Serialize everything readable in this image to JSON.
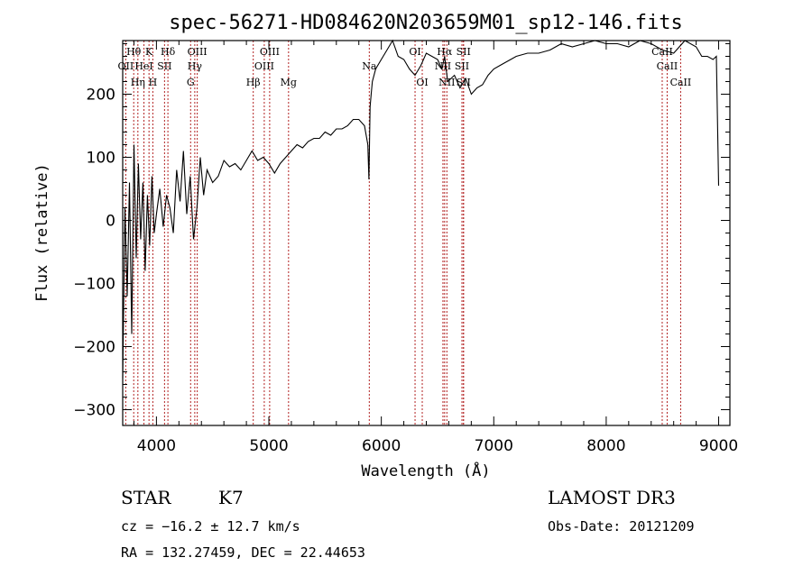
{
  "chart_data": {
    "type": "line",
    "title": "spec-56271-HD084620N203659M01_sp12-146.fits",
    "xlabel": "Wavelength (Å)",
    "ylabel": "Flux (relative)",
    "xlim": [
      3700,
      9100
    ],
    "ylim": [
      -325,
      285
    ],
    "xticks": [
      4000,
      5000,
      6000,
      7000,
      8000,
      9000
    ],
    "yticks": [
      -300,
      -200,
      -100,
      0,
      100,
      200
    ],
    "grid": false,
    "line_color": "#000000",
    "marker_color": "#b22222",
    "spectral_lines": [
      {
        "label": "OII",
        "wavelength": 3727,
        "row": 2
      },
      {
        "label": "Hθ",
        "wavelength": 3798,
        "row": 1
      },
      {
        "label": "Hη",
        "wavelength": 3835,
        "row": 3
      },
      {
        "label": "HeI",
        "wavelength": 3889,
        "row": 2
      },
      {
        "label": "K",
        "wavelength": 3934,
        "row": 1
      },
      {
        "label": "H",
        "wavelength": 3968,
        "row": 3
      },
      {
        "label": "SII",
        "wavelength": 4072,
        "row": 2
      },
      {
        "label": "Hδ",
        "wavelength": 4102,
        "row": 1
      },
      {
        "label": "G",
        "wavelength": 4304,
        "row": 3
      },
      {
        "label": "Hγ",
        "wavelength": 4341,
        "row": 2
      },
      {
        "label": "OIII",
        "wavelength": 4363,
        "row": 1
      },
      {
        "label": "Hβ",
        "wavelength": 4861,
        "row": 3
      },
      {
        "label": "OIII",
        "wavelength": 4959,
        "row": 2
      },
      {
        "label": "OIII",
        "wavelength": 5007,
        "row": 1
      },
      {
        "label": "Mg",
        "wavelength": 5175,
        "row": 3
      },
      {
        "label": "Na",
        "wavelength": 5893,
        "row": 2
      },
      {
        "label": "OI",
        "wavelength": 6300,
        "row": 1
      },
      {
        "label": "OI",
        "wavelength": 6364,
        "row": 3
      },
      {
        "label": "NII",
        "wavelength": 6548,
        "row": 2
      },
      {
        "label": "Hα",
        "wavelength": 6563,
        "row": 1
      },
      {
        "label": "NII",
        "wavelength": 6583,
        "row": 3
      },
      {
        "label": "SII",
        "wavelength": 6717,
        "row": 2
      },
      {
        "label": "SII",
        "wavelength": 6731,
        "row": 1
      },
      {
        "label": "SII",
        "wavelength": 6731,
        "row": 3
      },
      {
        "label": "CaII",
        "wavelength": 8498,
        "row": 1
      },
      {
        "label": "CaII",
        "wavelength": 8542,
        "row": 2
      },
      {
        "label": "CaII",
        "wavelength": 8662,
        "row": 3
      }
    ],
    "series": [
      {
        "x": [
          3700,
          3720,
          3740,
          3760,
          3780,
          3800,
          3820,
          3840,
          3860,
          3880,
          3900,
          3920,
          3940,
          3960,
          3980,
          4000,
          4030,
          4060,
          4090,
          4120,
          4150,
          4180,
          4210,
          4240,
          4270,
          4300,
          4330,
          4360,
          4390,
          4420,
          4450,
          4500,
          4550,
          4600,
          4650,
          4700,
          4750,
          4800,
          4850,
          4900,
          4950,
          5000,
          5050,
          5100,
          5150,
          5200,
          5250,
          5300,
          5350,
          5400,
          5450,
          5500,
          5550,
          5600,
          5650,
          5700,
          5750,
          5800,
          5850,
          5880,
          5890,
          5900,
          5910,
          5920,
          5950,
          6000,
          6050,
          6100,
          6150,
          6200,
          6250,
          6300,
          6350,
          6400,
          6450,
          6500,
          6540,
          6563,
          6590,
          6650,
          6700,
          6750,
          6800,
          6850,
          6900,
          6950,
          7000,
          7050,
          7100,
          7150,
          7200,
          7300,
          7400,
          7500,
          7600,
          7700,
          7800,
          7900,
          8000,
          8100,
          8200,
          8300,
          8400,
          8500,
          8600,
          8700,
          8800,
          8850,
          8900,
          8950,
          8980,
          9000
        ],
        "y": [
          -250,
          20,
          -120,
          60,
          -180,
          120,
          -60,
          90,
          -30,
          60,
          -80,
          40,
          -40,
          70,
          -20,
          10,
          50,
          -10,
          40,
          20,
          -20,
          80,
          30,
          110,
          10,
          70,
          -30,
          20,
          100,
          40,
          80,
          60,
          70,
          95,
          85,
          90,
          80,
          95,
          110,
          95,
          100,
          90,
          75,
          90,
          100,
          110,
          120,
          115,
          125,
          130,
          130,
          140,
          135,
          145,
          145,
          150,
          160,
          160,
          150,
          120,
          65,
          180,
          200,
          220,
          240,
          255,
          270,
          285,
          260,
          255,
          240,
          230,
          245,
          265,
          260,
          255,
          240,
          260,
          220,
          230,
          210,
          225,
          200,
          210,
          215,
          230,
          240,
          245,
          250,
          255,
          260,
          265,
          265,
          270,
          280,
          275,
          280,
          285,
          280,
          280,
          275,
          285,
          280,
          270,
          265,
          285,
          275,
          260,
          260,
          255,
          260,
          55
        ]
      }
    ]
  },
  "info": {
    "class_label": "STAR",
    "subclass_label": "K7",
    "survey_label": "LAMOST DR3",
    "cz_text": "cz = −16.2 ± 12.7 km/s",
    "obs_date_text": "Obs-Date: 20121209",
    "coords_text": "RA = 132.27459, DEC =  22.44653"
  }
}
